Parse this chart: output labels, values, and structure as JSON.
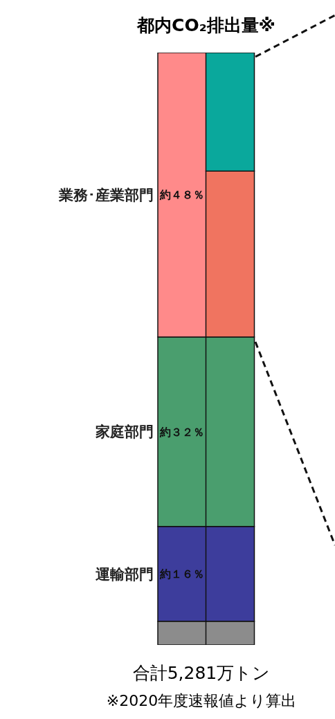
{
  "chart_data": {
    "type": "bar",
    "title": "都内CO₂排出量※",
    "stacked": true,
    "categories": [
      null,
      null
    ],
    "ylim": [
      0,
      100
    ],
    "tick_labels": false,
    "series": [
      {
        "color": "#8c8c8c",
        "values": [
          4,
          4
        ]
      },
      {
        "name": "運輸部門",
        "color": "#3d3d9c",
        "values": [
          16,
          16
        ],
        "value_labels": [
          "約１６％",
          null
        ]
      },
      {
        "name": "家庭部門",
        "color": "#4a9e6e",
        "values": [
          32,
          32
        ],
        "value_labels": [
          "約３２％",
          null
        ]
      },
      {
        "name": "業務･産業部門",
        "color": "#ff8a8a",
        "values": [
          48,
          null
        ],
        "value_labels": [
          "約４８％",
          null
        ]
      },
      {
        "color": "#f07460",
        "values": [
          null,
          28
        ]
      },
      {
        "color": "#0aa89c",
        "values": [
          null,
          20
        ]
      }
    ],
    "annotations": [
      "合計5,281万トン",
      "※2020年度速報値より算出"
    ]
  }
}
